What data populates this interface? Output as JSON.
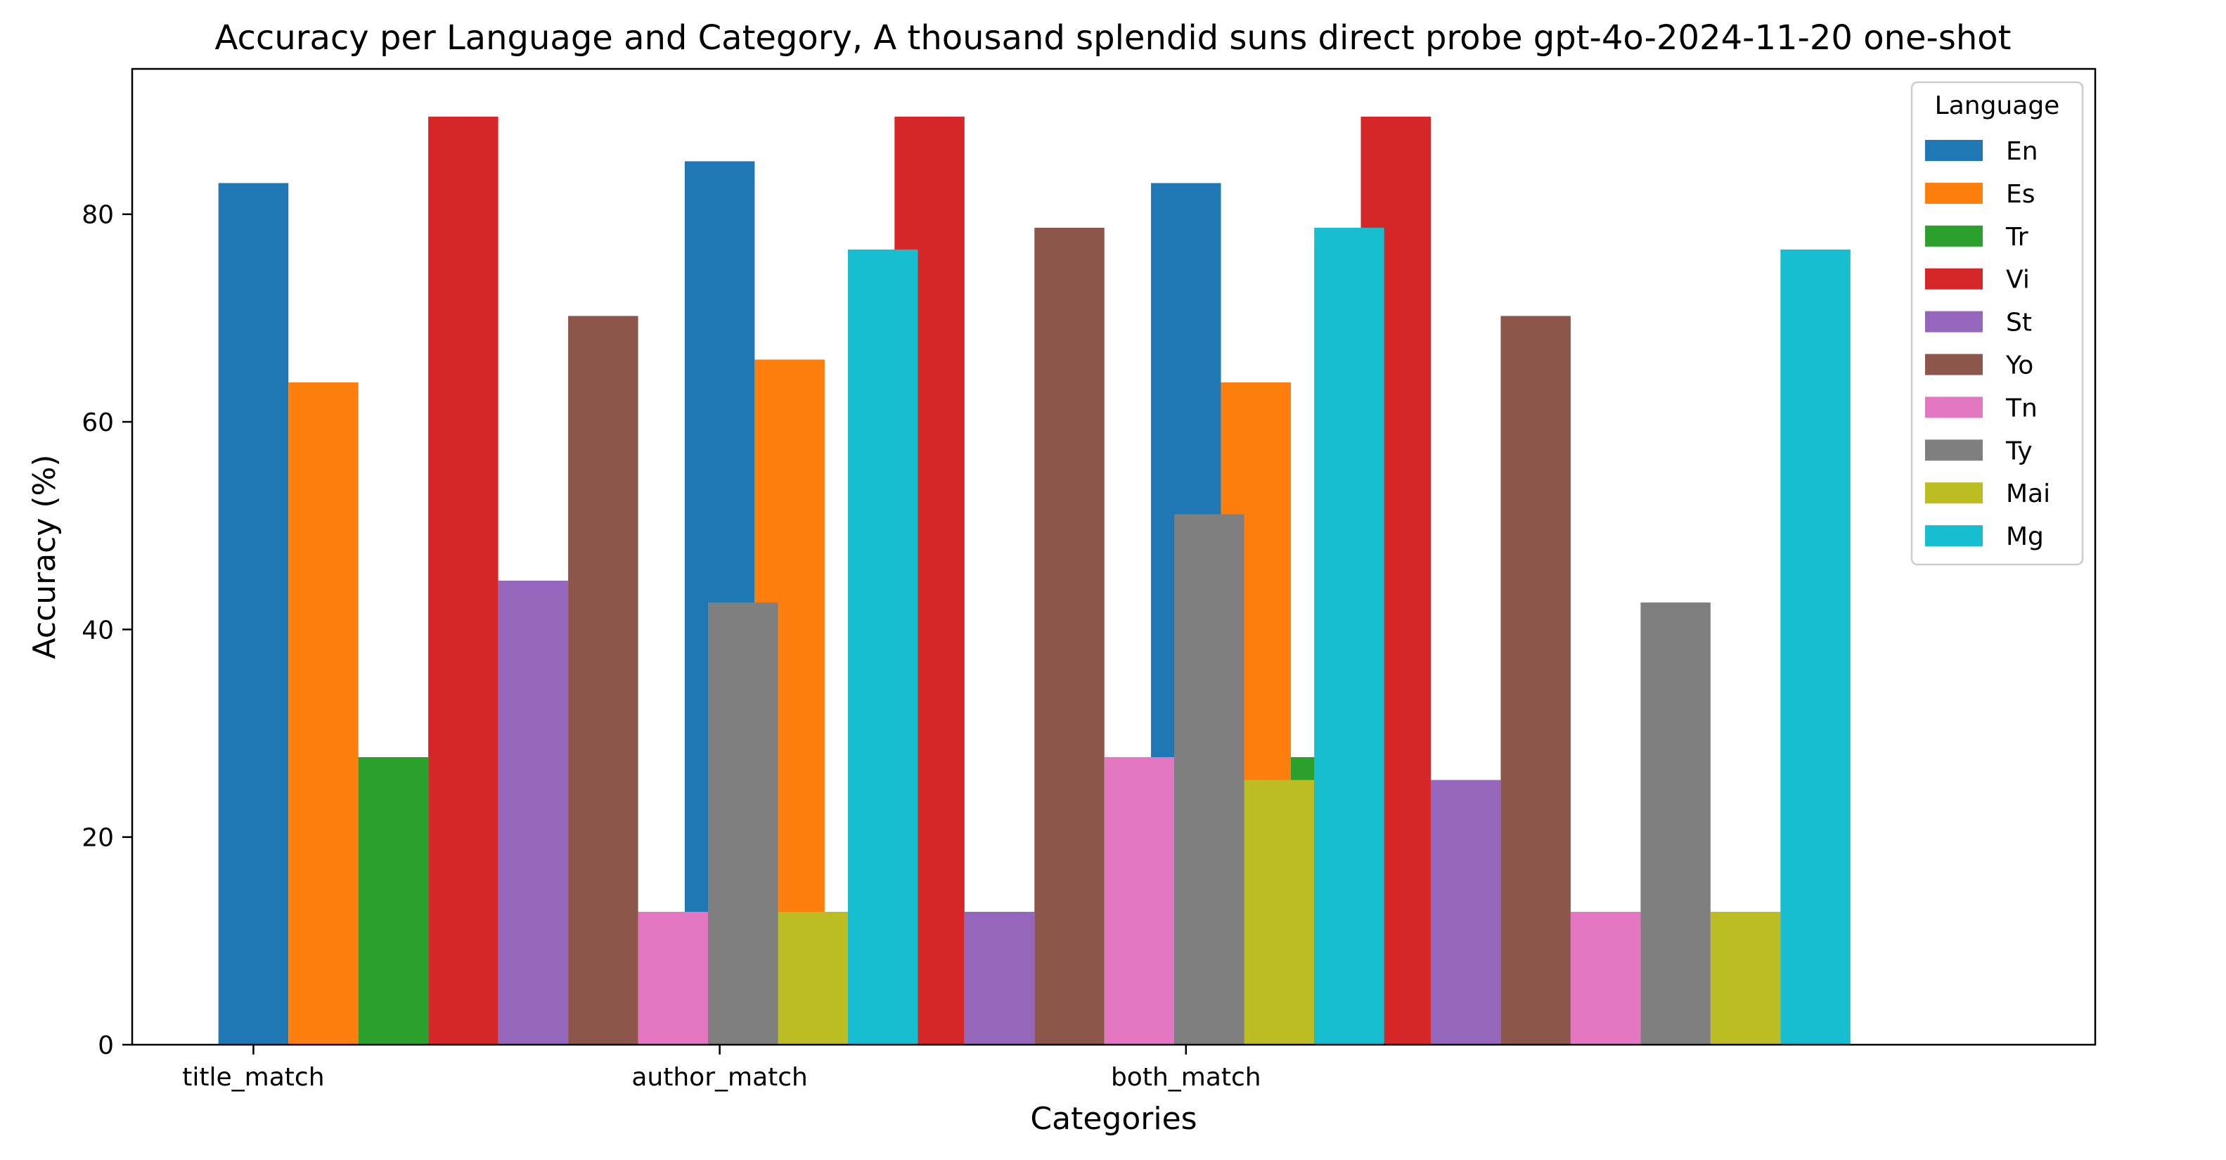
{
  "chart_data": {
    "type": "bar",
    "title": "Accuracy per Language and Category, A thousand splendid suns direct probe gpt-4o-2024-11-20 one-shot",
    "xlabel": "Categories",
    "ylabel": "Accuracy (%)",
    "ylim": [
      0,
      94
    ],
    "yticks": [
      0,
      20,
      40,
      60,
      80
    ],
    "categories": [
      "title_match",
      "author_match",
      "both_match"
    ],
    "legend": {
      "title": "Language",
      "placement": "upper right"
    },
    "grid": false,
    "series": [
      {
        "name": "En",
        "color": "#1f77b4",
        "values": [
          83.0,
          85.1,
          83.0
        ]
      },
      {
        "name": "Es",
        "color": "#ff7f0e",
        "values": [
          63.8,
          66.0,
          63.8
        ]
      },
      {
        "name": "Tr",
        "color": "#2ca02c",
        "values": [
          27.7,
          12.8,
          27.7
        ]
      },
      {
        "name": "Vi",
        "color": "#d62728",
        "values": [
          89.4,
          89.4,
          89.4
        ]
      },
      {
        "name": "St",
        "color": "#9467bd",
        "values": [
          44.7,
          12.8,
          25.5
        ]
      },
      {
        "name": "Yo",
        "color": "#8c564b",
        "values": [
          70.2,
          78.7,
          70.2
        ]
      },
      {
        "name": "Tn",
        "color": "#e377c2",
        "values": [
          12.8,
          27.7,
          12.8
        ]
      },
      {
        "name": "Ty",
        "color": "#7f7f7f",
        "values": [
          42.6,
          51.1,
          42.6
        ]
      },
      {
        "name": "Mai",
        "color": "#bcbd22",
        "values": [
          12.8,
          25.5,
          12.8
        ]
      },
      {
        "name": "Mg",
        "color": "#17becf",
        "values": [
          76.6,
          78.7,
          76.6
        ]
      }
    ]
  }
}
